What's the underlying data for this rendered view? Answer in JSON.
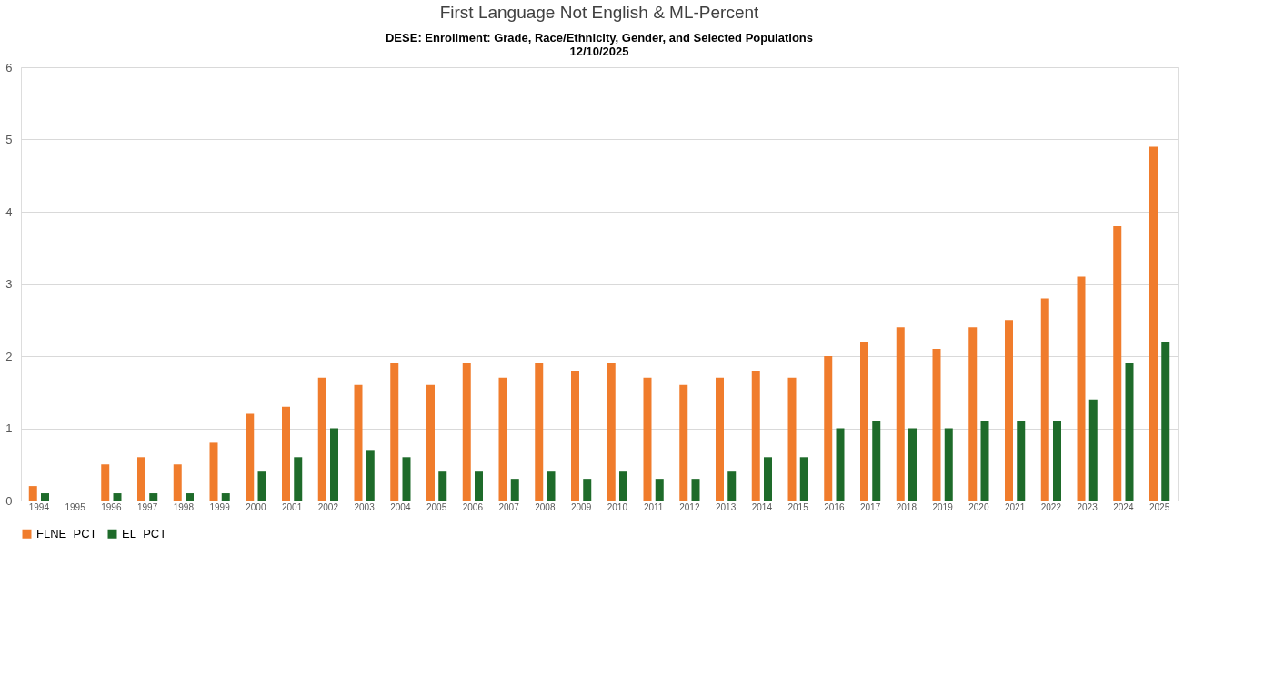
{
  "chart_data": {
    "type": "bar",
    "title": "First Language Not English & ML-Percent",
    "subtitle": "DESE: Enrollment: Grade, Race/Ethnicity, Gender, and Selected Populations\n12/10/2025",
    "categories": [
      "1994",
      "1995",
      "1996",
      "1997",
      "1998",
      "1999",
      "2000",
      "2001",
      "2002",
      "2003",
      "2004",
      "2005",
      "2006",
      "2007",
      "2008",
      "2009",
      "2010",
      "2011",
      "2012",
      "2013",
      "2014",
      "2015",
      "2016",
      "2017",
      "2018",
      "2019",
      "2020",
      "2021",
      "2022",
      "2023",
      "2024",
      "2025"
    ],
    "series": [
      {
        "name": "FLNE_PCT",
        "color": "#f07c2c",
        "values": [
          0.2,
          null,
          0.5,
          0.6,
          0.5,
          0.8,
          1.2,
          1.3,
          1.7,
          1.6,
          1.9,
          1.6,
          1.9,
          1.7,
          1.9,
          1.8,
          1.9,
          1.7,
          1.6,
          1.7,
          1.8,
          1.7,
          2.0,
          2.2,
          2.4,
          2.1,
          2.4,
          2.5,
          2.8,
          3.1,
          3.8,
          4.9
        ]
      },
      {
        "name": "EL_PCT",
        "color": "#1e6b2a",
        "values": [
          0.1,
          null,
          0.1,
          0.1,
          0.1,
          0.1,
          0.4,
          0.6,
          1.0,
          0.7,
          0.6,
          0.4,
          0.4,
          0.3,
          0.4,
          0.3,
          0.4,
          0.3,
          0.3,
          0.4,
          0.6,
          0.6,
          1.0,
          1.1,
          1.0,
          1.0,
          1.1,
          1.1,
          1.1,
          1.4,
          1.9,
          2.2
        ]
      }
    ],
    "ylim": [
      0,
      6
    ],
    "yticks": [
      0,
      1,
      2,
      3,
      4,
      5,
      6
    ],
    "grid": "y",
    "legend": "bottom"
  }
}
